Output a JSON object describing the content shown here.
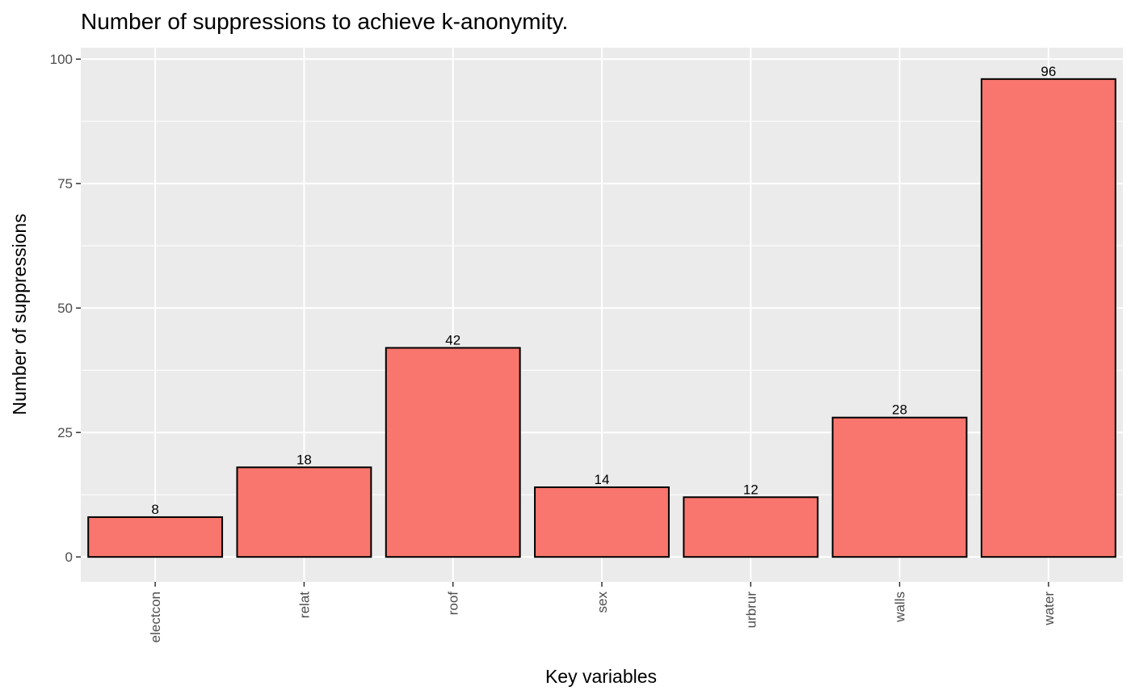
{
  "chart_data": {
    "type": "bar",
    "title": "Number of suppressions to achieve k-anonymity.",
    "xlabel": "Key variables",
    "ylabel": "Number of suppressions",
    "categories": [
      "electcon",
      "relat",
      "roof",
      "sex",
      "urbrur",
      "walls",
      "water"
    ],
    "values": [
      8,
      18,
      42,
      14,
      12,
      28,
      96
    ],
    "data_labels": [
      "8",
      "18",
      "42",
      "14",
      "12",
      "28",
      "96"
    ],
    "ylim": [
      -5,
      102.3
    ],
    "yticks": [
      0,
      25,
      50,
      75,
      100
    ],
    "ytick_labels": [
      "0",
      "25",
      "50",
      "75",
      "100"
    ],
    "grid": true,
    "legend": "none",
    "bar_color": "#F8766D",
    "bar_outline": "#000000",
    "panel_background": "#EBEBEB",
    "grid_color": "#FFFFFF"
  }
}
